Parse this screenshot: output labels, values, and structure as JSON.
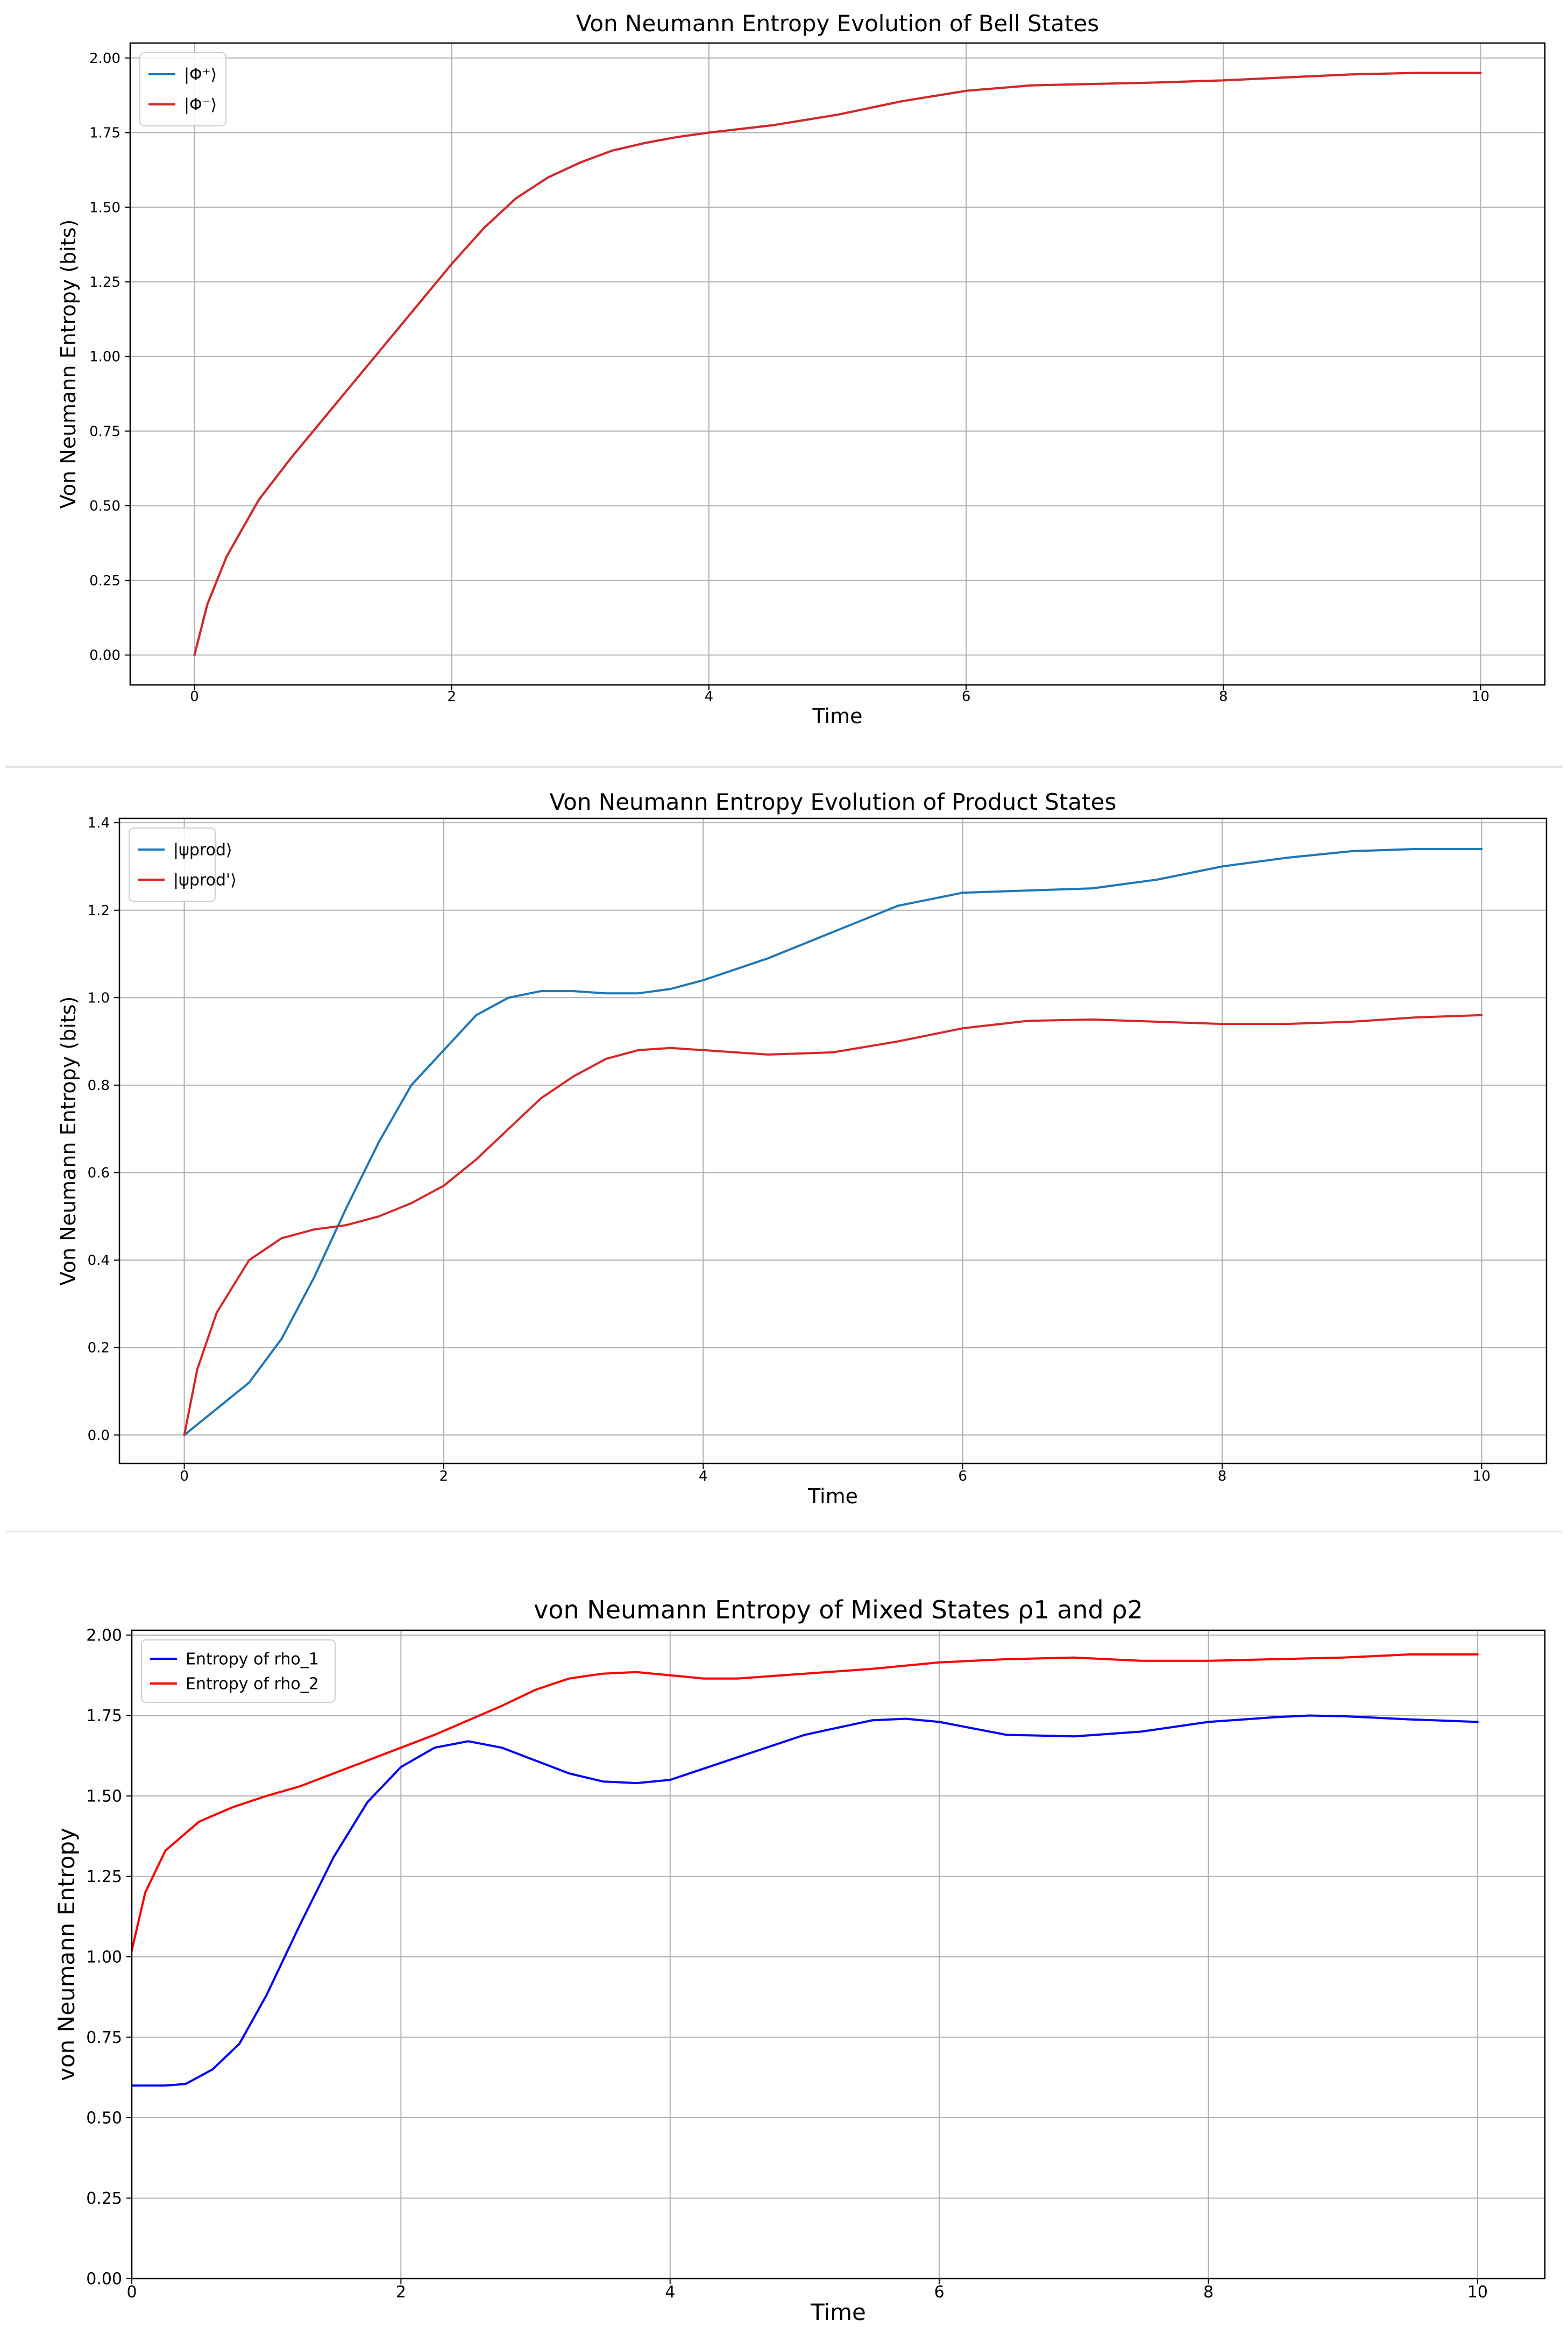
{
  "chart_data": [
    {
      "type": "line",
      "title": "Von Neumann Entropy Evolution of Bell States",
      "xlabel": "Time",
      "ylabel": "Von Neumann Entropy (bits)",
      "xlim": [
        -0.5,
        10.5
      ],
      "ylim": [
        -0.1,
        2.05
      ],
      "xticks": [
        0,
        2,
        4,
        6,
        8,
        10
      ],
      "xtick_labels": [
        "0",
        "2",
        "4",
        "6",
        "8",
        "10"
      ],
      "yticks": [
        0,
        0.25,
        0.5,
        0.75,
        1.0,
        1.25,
        1.5,
        1.75,
        2.0
      ],
      "ytick_labels": [
        "0.00",
        "0.25",
        "0.50",
        "0.75",
        "1.00",
        "1.25",
        "1.50",
        "1.75",
        "2.00"
      ],
      "grid": true,
      "legend": "top-left",
      "legend_style": "small",
      "series": [
        {
          "name": "|Φ⁺⟩",
          "color": "#1f77b4",
          "x": [
            0,
            0.1,
            0.25,
            0.5,
            0.75,
            1.0,
            1.25,
            1.5,
            1.75,
            2.0,
            2.25,
            2.5,
            2.75,
            3.0,
            3.25,
            3.5,
            3.75,
            4.0,
            4.5,
            5.0,
            5.5,
            6.0,
            6.5,
            7.0,
            7.5,
            8.0,
            8.5,
            9.0,
            9.5,
            10.0
          ],
          "y": [
            0,
            0.17,
            0.33,
            0.52,
            0.66,
            0.79,
            0.92,
            1.05,
            1.18,
            1.31,
            1.43,
            1.53,
            1.6,
            1.65,
            1.69,
            1.715,
            1.735,
            1.75,
            1.775,
            1.81,
            1.855,
            1.89,
            1.908,
            1.913,
            1.918,
            1.925,
            1.935,
            1.945,
            1.95,
            1.95
          ]
        },
        {
          "name": "|Φ⁻⟩",
          "color": "#d62728",
          "x": [
            0,
            0.1,
            0.25,
            0.5,
            0.75,
            1.0,
            1.25,
            1.5,
            1.75,
            2.0,
            2.25,
            2.5,
            2.75,
            3.0,
            3.25,
            3.5,
            3.75,
            4.0,
            4.5,
            5.0,
            5.5,
            6.0,
            6.5,
            7.0,
            7.5,
            8.0,
            8.5,
            9.0,
            9.5,
            10.0
          ],
          "y": [
            0,
            0.17,
            0.33,
            0.52,
            0.66,
            0.79,
            0.92,
            1.05,
            1.18,
            1.31,
            1.43,
            1.53,
            1.6,
            1.65,
            1.69,
            1.715,
            1.735,
            1.75,
            1.775,
            1.81,
            1.855,
            1.89,
            1.908,
            1.913,
            1.918,
            1.925,
            1.935,
            1.945,
            1.95,
            1.95
          ]
        }
      ]
    },
    {
      "type": "line",
      "title": "Von Neumann Entropy Evolution of Product States",
      "xlabel": "Time",
      "ylabel": "Von Neumann Entropy (bits)",
      "xlim": [
        -0.5,
        10.5
      ],
      "ylim": [
        -0.065,
        1.41
      ],
      "xticks": [
        0,
        2,
        4,
        6,
        8,
        10
      ],
      "xtick_labels": [
        "0",
        "2",
        "4",
        "6",
        "8",
        "10"
      ],
      "yticks": [
        0,
        0.2,
        0.4,
        0.6,
        0.8,
        1.0,
        1.2,
        1.4
      ],
      "ytick_labels": [
        "0.0",
        "0.2",
        "0.4",
        "0.6",
        "0.8",
        "1.0",
        "1.2",
        "1.4"
      ],
      "grid": true,
      "legend": "top-left",
      "legend_style": "small",
      "series": [
        {
          "name": "|ψprod⟩",
          "color": "#1f77b4",
          "x": [
            0,
            0.25,
            0.5,
            0.75,
            1.0,
            1.25,
            1.5,
            1.75,
            2.0,
            2.25,
            2.5,
            2.75,
            3.0,
            3.25,
            3.5,
            3.75,
            4.0,
            4.5,
            5.0,
            5.5,
            6.0,
            6.5,
            7.0,
            7.5,
            8.0,
            8.5,
            9.0,
            9.5,
            10.0
          ],
          "y": [
            0,
            0.06,
            0.12,
            0.22,
            0.36,
            0.52,
            0.67,
            0.8,
            0.88,
            0.96,
            1.0,
            1.015,
            1.015,
            1.01,
            1.01,
            1.02,
            1.04,
            1.09,
            1.15,
            1.21,
            1.24,
            1.245,
            1.25,
            1.27,
            1.3,
            1.32,
            1.335,
            1.34,
            1.34
          ]
        },
        {
          "name": "|ψprod'⟩",
          "color": "#d62728",
          "x": [
            0,
            0.1,
            0.25,
            0.5,
            0.75,
            1.0,
            1.25,
            1.5,
            1.75,
            2.0,
            2.25,
            2.5,
            2.75,
            3.0,
            3.25,
            3.5,
            3.75,
            4.0,
            4.5,
            5.0,
            5.5,
            6.0,
            6.5,
            7.0,
            7.5,
            8.0,
            8.5,
            9.0,
            9.5,
            10.0
          ],
          "y": [
            0,
            0.15,
            0.28,
            0.4,
            0.45,
            0.47,
            0.48,
            0.5,
            0.53,
            0.57,
            0.63,
            0.7,
            0.77,
            0.82,
            0.86,
            0.88,
            0.885,
            0.88,
            0.87,
            0.875,
            0.9,
            0.93,
            0.947,
            0.95,
            0.945,
            0.94,
            0.94,
            0.945,
            0.955,
            0.96
          ]
        }
      ]
    },
    {
      "type": "line",
      "title": "von Neumann Entropy of Mixed States ρ1 and ρ2",
      "xlabel": "Time",
      "ylabel": "von Neumann Entropy",
      "xlim": [
        0,
        10.5
      ],
      "ylim": [
        0,
        2.015
      ],
      "xticks": [
        0,
        2,
        4,
        6,
        8,
        10
      ],
      "xtick_labels": [
        "0",
        "2",
        "4",
        "6",
        "8",
        "10"
      ],
      "yticks": [
        0,
        0.25,
        0.5,
        0.75,
        1.0,
        1.25,
        1.5,
        1.75,
        2.0
      ],
      "ytick_labels": [
        "0.00",
        "0.25",
        "0.50",
        "0.75",
        "1.00",
        "1.25",
        "1.50",
        "1.75",
        "2.00"
      ],
      "grid": true,
      "legend": "top-left",
      "legend_style": "large",
      "series": [
        {
          "name": "Entropy of rho_1",
          "color": "#0000ff",
          "x": [
            0,
            0.25,
            0.4,
            0.6,
            0.8,
            1.0,
            1.25,
            1.5,
            1.75,
            2.0,
            2.25,
            2.5,
            2.75,
            3.0,
            3.25,
            3.5,
            3.75,
            4.0,
            4.5,
            5.0,
            5.5,
            5.75,
            6.0,
            6.5,
            7.0,
            7.5,
            8.0,
            8.5,
            8.75,
            9.0,
            9.5,
            10.0
          ],
          "y": [
            0.6,
            0.6,
            0.605,
            0.65,
            0.73,
            0.88,
            1.1,
            1.31,
            1.48,
            1.59,
            1.65,
            1.67,
            1.65,
            1.61,
            1.57,
            1.545,
            1.54,
            1.55,
            1.62,
            1.69,
            1.735,
            1.74,
            1.73,
            1.69,
            1.685,
            1.7,
            1.73,
            1.745,
            1.75,
            1.748,
            1.738,
            1.73
          ]
        },
        {
          "name": "Entropy of rho_2",
          "color": "#ff0000",
          "x": [
            0,
            0.1,
            0.25,
            0.5,
            0.75,
            1.0,
            1.25,
            1.5,
            1.75,
            2.0,
            2.25,
            2.5,
            2.75,
            3.0,
            3.25,
            3.5,
            3.75,
            4.0,
            4.25,
            4.5,
            5.0,
            5.5,
            6.0,
            6.5,
            7.0,
            7.5,
            8.0,
            8.5,
            9.0,
            9.5,
            10.0
          ],
          "y": [
            1.02,
            1.2,
            1.33,
            1.42,
            1.465,
            1.5,
            1.53,
            1.57,
            1.61,
            1.65,
            1.69,
            1.735,
            1.78,
            1.83,
            1.865,
            1.88,
            1.885,
            1.875,
            1.865,
            1.865,
            1.88,
            1.895,
            1.915,
            1.925,
            1.93,
            1.92,
            1.92,
            1.925,
            1.93,
            1.94,
            1.94
          ]
        }
      ]
    }
  ]
}
